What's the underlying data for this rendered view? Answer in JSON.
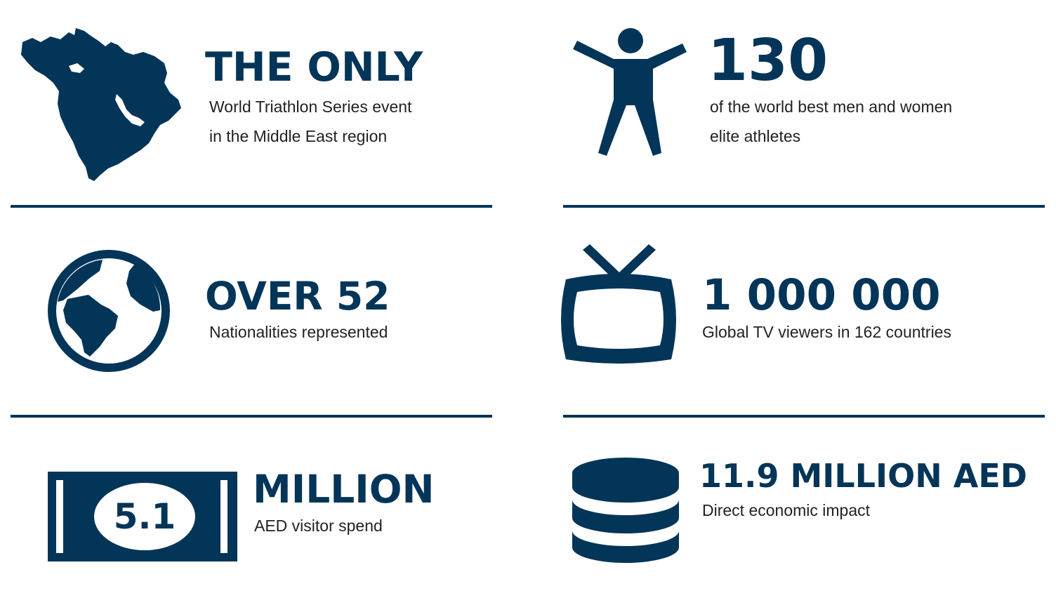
{
  "colors": {
    "primary": "#033558",
    "text": "#222222",
    "background": "#ffffff"
  },
  "stats": [
    {
      "icon": "middle-east-map-icon",
      "heading": "THE ONLY",
      "lines": [
        "World Triathlon Series event",
        "in the Middle East region"
      ]
    },
    {
      "icon": "athlete-figure-icon",
      "heading": "130",
      "lines": [
        "of the world best men and women",
        "elite athletes"
      ]
    },
    {
      "icon": "globe-icon",
      "heading": "OVER 52",
      "lines": [
        "Nationalities represented"
      ]
    },
    {
      "icon": "television-icon",
      "heading": "1 000 000",
      "lines": [
        "Global TV viewers in 162 countries"
      ]
    },
    {
      "icon": "banknote-icon",
      "icon_label": "5.1",
      "heading": "MILLION",
      "lines": [
        "AED visitor spend"
      ]
    },
    {
      "icon": "coin-stack-icon",
      "heading": "11.9 MILLION AED",
      "lines": [
        "Direct economic impact"
      ]
    }
  ]
}
